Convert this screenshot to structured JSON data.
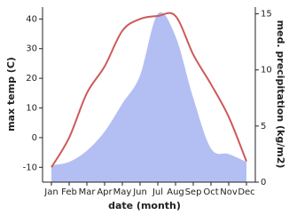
{
  "chart_data": {
    "type": "line-area",
    "categories": [
      "Jan",
      "Feb",
      "Mar",
      "Apr",
      "May",
      "Jun",
      "Jul",
      "Aug",
      "Sep",
      "Oct",
      "Nov",
      "Dec"
    ],
    "xlabel": "date (month)",
    "ylabel": "max temp (C)",
    "y2label": "med. precipitation (kg/m2)",
    "ylim": [
      -15,
      44
    ],
    "yticks": [
      -10,
      0,
      10,
      20,
      30,
      40
    ],
    "y2lim": [
      0,
      15.6
    ],
    "y2ticks": [
      0,
      5,
      10,
      15
    ],
    "series": [
      {
        "name": "max temp",
        "type": "line",
        "color": "#cd5a5a",
        "values": [
          -10,
          0,
          15,
          24,
          36,
          40,
          41,
          41,
          28,
          18,
          7,
          -8
        ]
      },
      {
        "name": "med. precipitation",
        "type": "area",
        "axis": "y2",
        "color": "#b3bff3",
        "values": [
          1.5,
          1.8,
          2.8,
          4.5,
          7,
          9.5,
          15,
          13,
          7.5,
          3,
          2.5,
          1.8
        ]
      }
    ]
  }
}
